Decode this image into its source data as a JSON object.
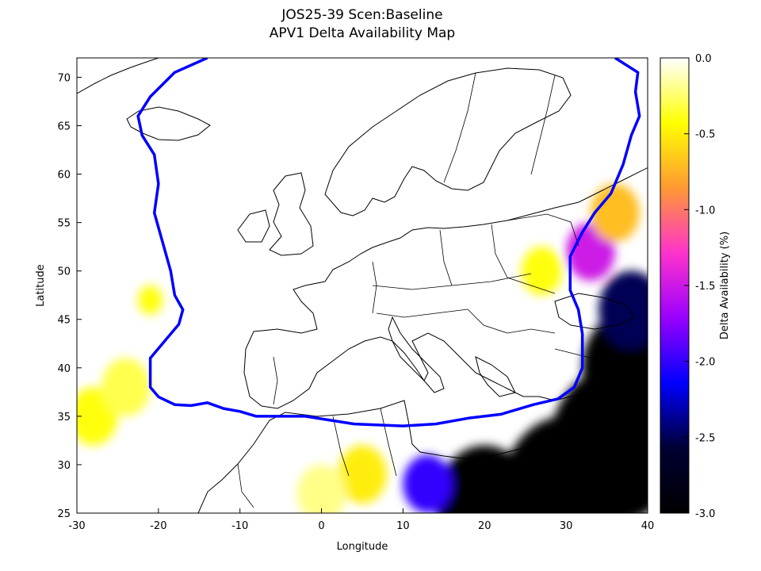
{
  "title": {
    "line1": "JOS25-39 Scen:Baseline",
    "line2": "APV1 Delta Availability Map"
  },
  "axes": {
    "xlabel": "Longitude",
    "ylabel": "Latitude",
    "xlim": [
      -30,
      40
    ],
    "ylim": [
      25,
      72
    ],
    "xticks": [
      "-30",
      "-20",
      "-10",
      "0",
      "10",
      "20",
      "30",
      "40"
    ],
    "yticks": [
      "25",
      "30",
      "35",
      "40",
      "45",
      "50",
      "55",
      "60",
      "65",
      "70"
    ]
  },
  "colorbar": {
    "label": "Delta Availability (%)",
    "range": [
      -3.0,
      0.0
    ],
    "ticks": [
      "0.0",
      "-0.5",
      "-1.0",
      "-1.5",
      "-2.0",
      "-2.5",
      "-3.0"
    ],
    "colors": [
      "#ffffff",
      "#ffff00",
      "#ff9933",
      "#ff33cc",
      "#9900ff",
      "#0000ff",
      "#000033",
      "#000000"
    ]
  },
  "chart_data": {
    "type": "heatmap",
    "title": "JOS25-39 Scen:Baseline APV1 Delta Availability Map",
    "xlabel": "Longitude",
    "ylabel": "Latitude",
    "xlim": [
      -30,
      40
    ],
    "ylim": [
      25,
      72
    ],
    "value_range": [
      -3.0,
      0.0
    ],
    "grid": false,
    "service_area_boundary_color": "#0000ff",
    "service_area_boundary": [
      [
        -14,
        72
      ],
      [
        -18,
        70.5
      ],
      [
        -21,
        68
      ],
      [
        -22.5,
        66
      ],
      [
        -22,
        64
      ],
      [
        -20.5,
        62
      ],
      [
        -20,
        59
      ],
      [
        -20.5,
        56
      ],
      [
        -19.5,
        53
      ],
      [
        -18.5,
        50
      ],
      [
        -18,
        47.5
      ],
      [
        -17,
        46
      ],
      [
        -17.5,
        44.5
      ],
      [
        -19,
        43
      ],
      [
        -21,
        41
      ],
      [
        -21,
        38
      ],
      [
        -20,
        37
      ],
      [
        -18,
        36.2
      ],
      [
        -16,
        36.1
      ],
      [
        -14,
        36.4
      ],
      [
        -12,
        35.8
      ],
      [
        -10,
        35.5
      ],
      [
        -8,
        35
      ],
      [
        -2,
        35
      ],
      [
        4,
        34.2
      ],
      [
        10,
        34
      ],
      [
        14,
        34.2
      ],
      [
        18,
        34.8
      ],
      [
        22,
        35.2
      ],
      [
        26,
        36.2
      ],
      [
        29,
        36.8
      ],
      [
        31,
        38
      ],
      [
        32,
        40
      ],
      [
        32,
        43.5
      ],
      [
        31.5,
        46
      ],
      [
        30.5,
        48
      ],
      [
        30.5,
        51.5
      ],
      [
        32,
        54
      ],
      [
        33.5,
        56
      ],
      [
        35.5,
        58
      ],
      [
        37,
        61
      ],
      [
        38,
        64
      ],
      [
        39,
        66
      ],
      [
        38.5,
        68.5
      ],
      [
        38.8,
        70.5
      ],
      [
        36,
        72
      ]
    ],
    "degradation_regions": [
      {
        "lon": 36,
        "lat": 32,
        "value": -3.0,
        "extent_deg": 8
      },
      {
        "lon": 30,
        "lat": 27,
        "value": -3.0,
        "extent_deg": 8
      },
      {
        "lon": 20,
        "lat": 26,
        "value": -3.0,
        "extent_deg": 6
      },
      {
        "lon": 38,
        "lat": 40,
        "value": -3.0,
        "extent_deg": 6
      },
      {
        "lon": 38,
        "lat": 46,
        "value": -2.5,
        "extent_deg": 4
      },
      {
        "lon": 13,
        "lat": 28,
        "value": -2.0,
        "extent_deg": 3
      },
      {
        "lon": 33,
        "lat": 52,
        "value": -1.5,
        "extent_deg": 3
      },
      {
        "lon": 36,
        "lat": 56,
        "value": -0.7,
        "extent_deg": 3
      },
      {
        "lon": 5,
        "lat": 29,
        "value": -0.5,
        "extent_deg": 3
      },
      {
        "lon": -28,
        "lat": 35,
        "value": -0.4,
        "extent_deg": 3
      },
      {
        "lon": -24,
        "lat": 38,
        "value": -0.3,
        "extent_deg": 3
      },
      {
        "lon": -21,
        "lat": 47,
        "value": -0.4,
        "extent_deg": 1.5
      },
      {
        "lon": 27,
        "lat": 50,
        "value": -0.4,
        "extent_deg": 2.5
      },
      {
        "lon": 0,
        "lat": 27,
        "value": -0.2,
        "extent_deg": 3
      }
    ]
  }
}
